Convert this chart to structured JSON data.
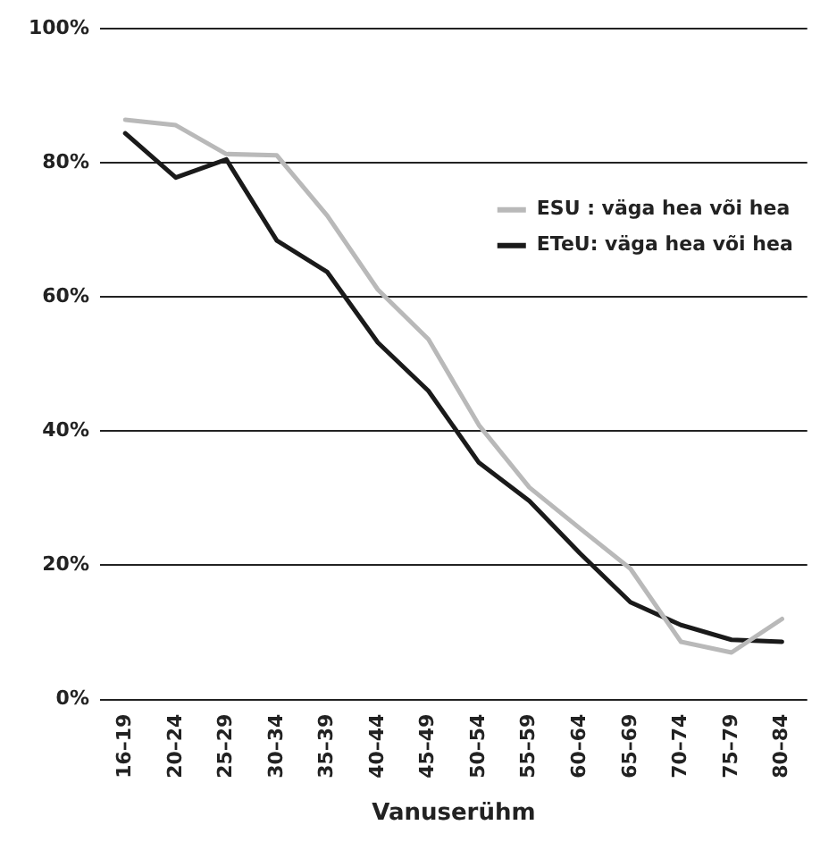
{
  "chart_data": {
    "type": "line",
    "xlabel": "Vanuserühm",
    "categories": [
      "16–19",
      "20–24",
      "25–29",
      "30–34",
      "35–39",
      "40–44",
      "45–49",
      "50–54",
      "55–59",
      "60–64",
      "65–69",
      "70–74",
      "75–79",
      "80–84"
    ],
    "series": [
      {
        "name": "ESU : väga hea või hea",
        "color": "#b9b9b9",
        "values": [
          86.4,
          85.6,
          81.3,
          81.1,
          72.1,
          61.1,
          53.7,
          40.9,
          31.6,
          25.5,
          19.5,
          8.6,
          7.0,
          12.0
        ]
      },
      {
        "name": "ETeU: väga hea või hea",
        "color": "#1a1a1a",
        "values": [
          84.4,
          77.8,
          80.5,
          68.4,
          63.7,
          53.2,
          46.0,
          35.3,
          29.6,
          21.8,
          14.5,
          11.1,
          8.9,
          8.6
        ]
      }
    ],
    "ylim": [
      0,
      100
    ],
    "yticks": [
      {
        "value": 0,
        "label": "0%"
      },
      {
        "value": 20,
        "label": "20%"
      },
      {
        "value": 40,
        "label": "40%"
      },
      {
        "value": 60,
        "label": "60%"
      },
      {
        "value": 80,
        "label": "80%"
      },
      {
        "value": 100,
        "label": "100%"
      }
    ],
    "grid": "y",
    "legend": "right",
    "marker": "none",
    "line_style": "solid"
  }
}
